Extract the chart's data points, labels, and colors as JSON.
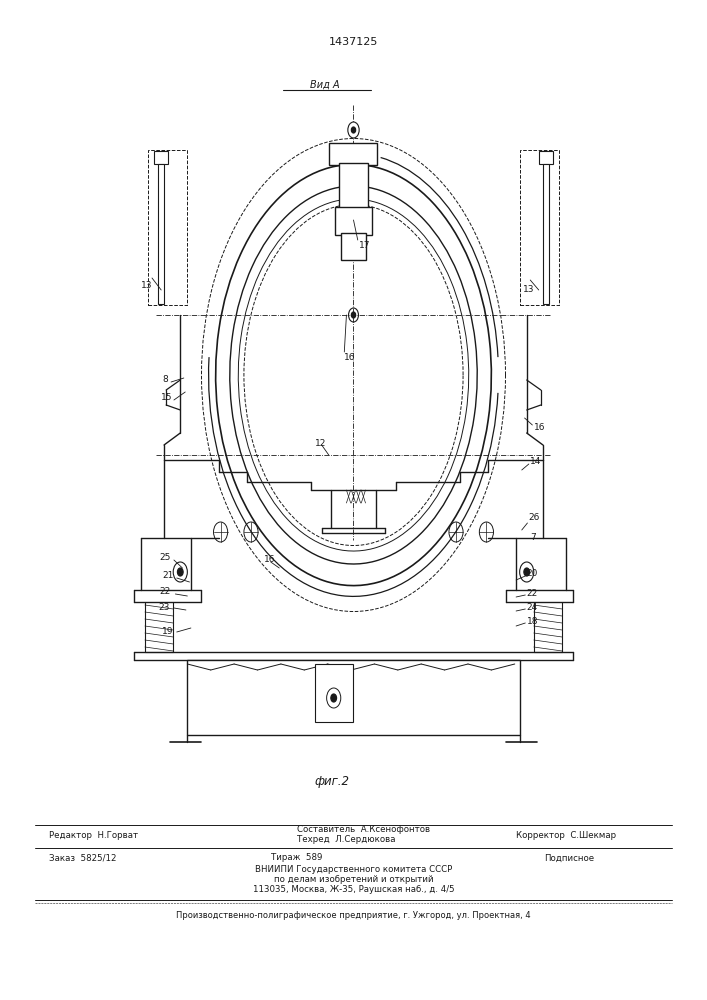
{
  "title": "1437125",
  "fig_label": "фиг.2",
  "view_label": "Вид А",
  "background_color": "#ffffff",
  "line_color": "#1a1a1a",
  "line_width": 0.9,
  "page_width": 7.07,
  "page_height": 10.0,
  "editor_line": "Редактор  Н.Горват",
  "composer_line1": "Составитель  А.Ксенофонтов",
  "composer_line2": "Техред  Л.Сердюкова",
  "corrector_line": "Корректор  С.Шекмар",
  "order_line": "Заказ  5825/12",
  "tirazh_line": "Тираж  589",
  "podpisnoe_line": "Подписное",
  "vnipi_line1": "ВНИИПИ Государственного комитета СССР",
  "vnipi_line2": "по делам изобретений и открытий",
  "vnipi_line3": "113035, Москва, Ж-35, Раушская наб., д. 4/5",
  "factory_line": "Производственно-полиграфическое предприятие, г. Ужгород, ул. Проектная, 4"
}
